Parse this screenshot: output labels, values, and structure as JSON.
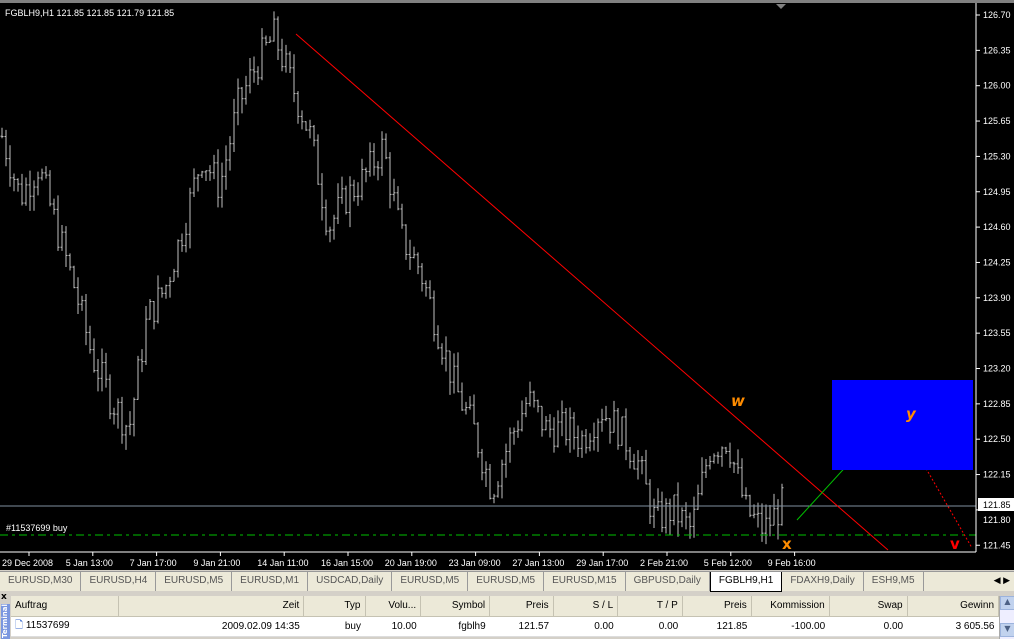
{
  "chart": {
    "header": "FGBLH9,H1  121.85 121.85 121.79 121.85",
    "order_label": "#11537699 buy",
    "current_price": "121.85",
    "wave_labels": {
      "w": "w",
      "x": "x",
      "y": "y",
      "v": "v"
    },
    "colors": {
      "background": "#000000",
      "bars": "#c0c0c0",
      "trendline": "#ff0000",
      "target_box": "#0000ff",
      "wave_label": "#ff8c00",
      "v_label": "#ff0000",
      "order_line": "#00c000",
      "price_line": "#7f8fa0"
    }
  },
  "chart_data": {
    "type": "ohlc",
    "symbol": "FGBLH9",
    "timeframe": "H1",
    "y_ticks": [
      "126.70",
      "126.35",
      "126.00",
      "125.65",
      "125.30",
      "124.95",
      "124.60",
      "124.25",
      "123.90",
      "123.55",
      "123.20",
      "122.85",
      "122.50",
      "122.15",
      "121.80",
      "121.45"
    ],
    "ylim": [
      121.45,
      126.7
    ],
    "x_ticks": [
      "29 Dec 2008",
      "5 Jan 13:00",
      "7 Jan 17:00",
      "9 Jan 21:00",
      "14 Jan 11:00",
      "16 Jan 15:00",
      "20 Jan 19:00",
      "23 Jan 09:00",
      "27 Jan 13:00",
      "29 Jan 17:00",
      "2 Feb 21:00",
      "5 Feb 12:00",
      "9 Feb 16:00"
    ],
    "approx_close_path": [
      125.5,
      124.9,
      125.2,
      124.6,
      124.0,
      123.3,
      122.9,
      122.6,
      123.7,
      124.0,
      124.6,
      125.3,
      125.0,
      125.8,
      126.2,
      126.5,
      126.0,
      125.5,
      124.6,
      124.9,
      125.1,
      125.4,
      124.5,
      124.2,
      123.6,
      123.0,
      122.6,
      122.0,
      122.5,
      122.9,
      122.6,
      122.6,
      122.5,
      122.8,
      122.6,
      122.3,
      121.7,
      121.8,
      121.6,
      122.4,
      122.5,
      121.8,
      121.6,
      121.85
    ]
  },
  "tabs": [
    "EURUSD,M30",
    "EURUSD,H4",
    "EURUSD,M5",
    "EURUSD,M1",
    "USDCAD,Daily",
    "EURUSD,M5",
    "EURUSD,M5",
    "EURUSD,M15",
    "GBPUSD,Daily",
    "FGBLH9,H1",
    "FDAXH9,Daily",
    "ESH9,M5"
  ],
  "active_tab": "FGBLH9,H1",
  "terminal": {
    "side_label": "Terminal",
    "close": "x",
    "columns": [
      "Auftrag",
      "Zeit",
      "Typ",
      "Volu...",
      "Symbol",
      "Preis",
      "S / L",
      "T / P",
      "Preis",
      "Kommission",
      "Swap",
      "Gewinn"
    ],
    "rows": [
      [
        "11537699",
        "2009.02.09 14:35",
        "buy",
        "10.00",
        "fgblh9",
        "121.57",
        "0.00",
        "0.00",
        "121.85",
        "-100.00",
        "0.00",
        "3 605.56"
      ]
    ]
  }
}
